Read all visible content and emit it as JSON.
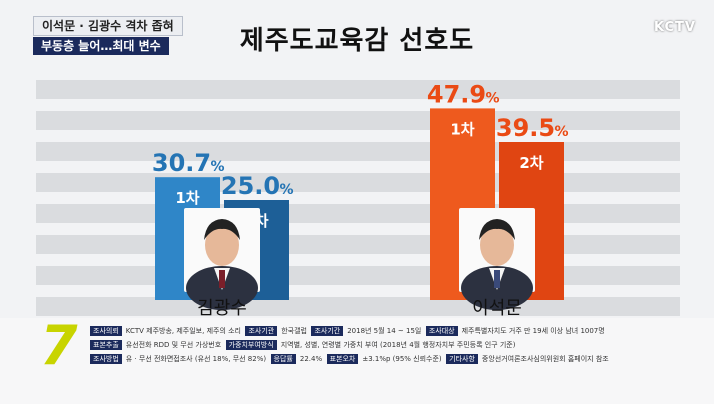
{
  "header": {
    "caption_top": "이석문 · 김광수 격차 좁혀",
    "caption_bottom": "부동층 늘어…최대 변수",
    "logo": "KCTV"
  },
  "colors": {
    "kim": "#2f86c8",
    "kim_dark": "#1d5f97",
    "kim_label": "#2474b4",
    "lee": "#ee5a1e",
    "lee_dark": "#e04512",
    "lee_label": "#ea4a14",
    "band": "#dadcdf"
  },
  "chart_data": {
    "type": "bar",
    "title": "제주도교육감 선호도",
    "categories": [
      "김광수",
      "이석문"
    ],
    "series": [
      {
        "name": "1차",
        "values": [
          30.7,
          47.9
        ]
      },
      {
        "name": "2차",
        "values": [
          25.0,
          39.5
        ]
      }
    ],
    "value_labels": [
      [
        "30.7",
        "25.0"
      ],
      [
        "47.9",
        "39.5"
      ]
    ],
    "unit": "%",
    "ylim": [
      0,
      50
    ],
    "grid": true
  },
  "footer": {
    "row1": [
      {
        "tag": "조사의뢰",
        "text": "KCTV 제주방송, 제주일보, 제주의 소리"
      },
      {
        "tag": "조사기관",
        "text": "한국갤럽"
      },
      {
        "tag": "조사기간",
        "text": "2018년 5월 14 ~ 15일"
      },
      {
        "tag": "조사대상",
        "text": "제주특별자치도 거주 만 19세 이상 남녀 1007명"
      }
    ],
    "row2": [
      {
        "tag": "표본추출",
        "text": "유선전화 RDD 및 무선 가상번호"
      },
      {
        "tag": "가중치부여방식",
        "text": "지역별, 성별, 연령별 가중치 부여 (2018년 4월 행정자치부 주민등록 인구 기준)"
      }
    ],
    "row3": [
      {
        "tag": "조사방법",
        "text": "유 · 무선 전화면접조사 (유선 18%, 무선 82%)"
      },
      {
        "tag": "응답률",
        "text": "22.4%"
      },
      {
        "tag": "표본오차",
        "text": "±3.1%p (95% 신뢰수준)"
      },
      {
        "tag": "기타사항",
        "text": "중앙선거여론조사심의위원회 홈페이지 참조"
      }
    ]
  }
}
